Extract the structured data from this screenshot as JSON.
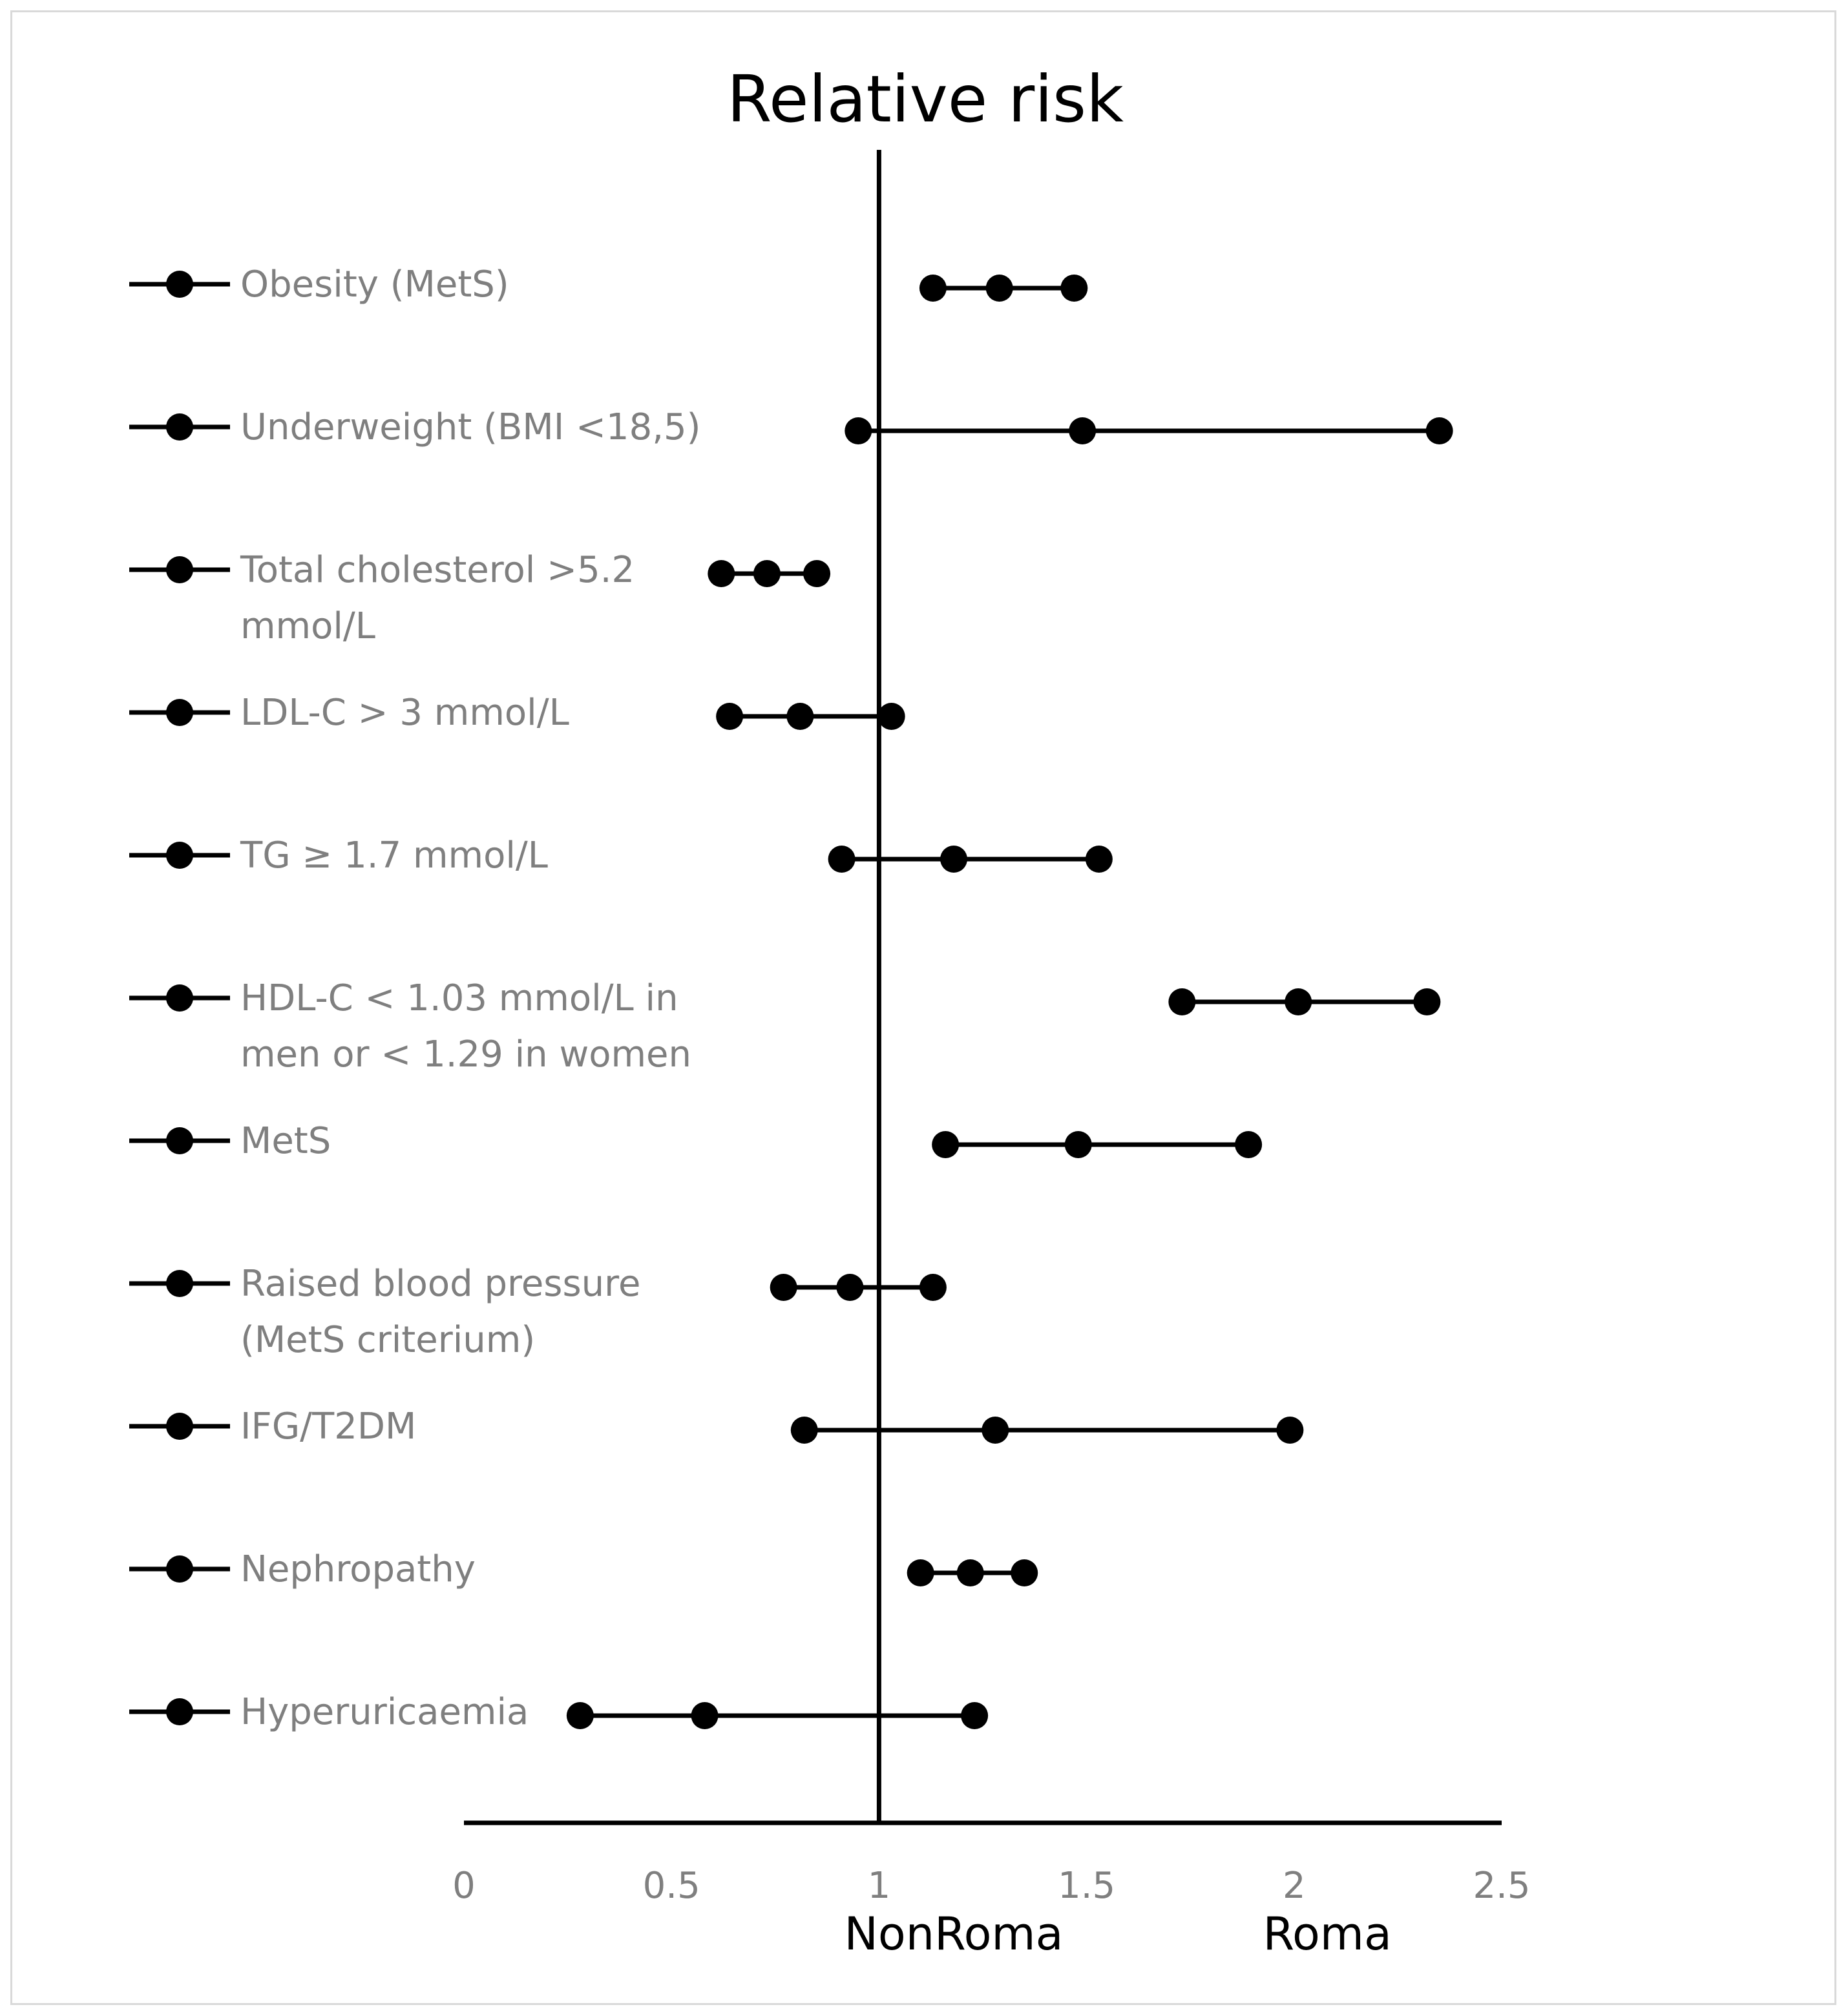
{
  "chart_data": {
    "type": "scatter",
    "subtype": "forest-plot",
    "title": "Relative risk",
    "xlabel": "",
    "ylabel": "",
    "xlim": [
      0,
      2.5
    ],
    "xticks": [
      0,
      0.5,
      1,
      1.5,
      2,
      2.5
    ],
    "xtick_labels": [
      "0",
      "0.5",
      "1",
      "1.5",
      "2",
      "2.5"
    ],
    "reference_line": 1,
    "group_labels": [
      {
        "text": "NonRoma",
        "position": 1.18
      },
      {
        "text": "Roma",
        "position": 2.08
      }
    ],
    "legend_placement": "left",
    "series": [
      {
        "name": "Obesity (MetS)",
        "label_lines": [
          "Obesity (MetS)"
        ],
        "lower": 1.13,
        "estimate": 1.29,
        "upper": 1.47
      },
      {
        "name": "Underweight (BMI <18,5)",
        "label_lines": [
          "Underweight (BMI <18,5)"
        ],
        "lower": 0.95,
        "estimate": 1.49,
        "upper": 2.35
      },
      {
        "name": "Total cholesterol >5.2 mmol/L",
        "label_lines": [
          "Total cholesterol >5.2",
          "mmol/L"
        ],
        "lower": 0.62,
        "estimate": 0.73,
        "upper": 0.85
      },
      {
        "name": "LDL-C > 3 mmol/L",
        "label_lines": [
          "LDL-C > 3 mmol/L"
        ],
        "lower": 0.64,
        "estimate": 0.81,
        "upper": 1.03
      },
      {
        "name": "TG ≥ 1.7 mmol/L",
        "label_lines": [
          "TG ≥ 1.7 mmol/L"
        ],
        "lower": 0.91,
        "estimate": 1.18,
        "upper": 1.53
      },
      {
        "name": "HDL-C < 1.03 mmol/L in men or < 1.29 in women",
        "label_lines": [
          "HDL-C < 1.03 mmol/L in",
          "men or < 1.29 in women"
        ],
        "lower": 1.73,
        "estimate": 2.01,
        "upper": 2.32
      },
      {
        "name": "MetS",
        "label_lines": [
          "MetS"
        ],
        "lower": 1.16,
        "estimate": 1.48,
        "upper": 1.89
      },
      {
        "name": "Raised blood pressure (MetS criterium)",
        "label_lines": [
          "Raised blood pressure",
          "(MetS criterium)"
        ],
        "lower": 0.77,
        "estimate": 0.93,
        "upper": 1.13
      },
      {
        "name": "IFG/T2DM",
        "label_lines": [
          "IFG/T2DM"
        ],
        "lower": 0.82,
        "estimate": 1.28,
        "upper": 1.99
      },
      {
        "name": "Nephropathy",
        "label_lines": [
          "Nephropathy"
        ],
        "lower": 1.1,
        "estimate": 1.22,
        "upper": 1.35
      },
      {
        "name": "Hyperuricaemia",
        "label_lines": [
          "Hyperuricaemia"
        ],
        "lower": 0.28,
        "estimate": 0.58,
        "upper": 1.23
      }
    ]
  }
}
